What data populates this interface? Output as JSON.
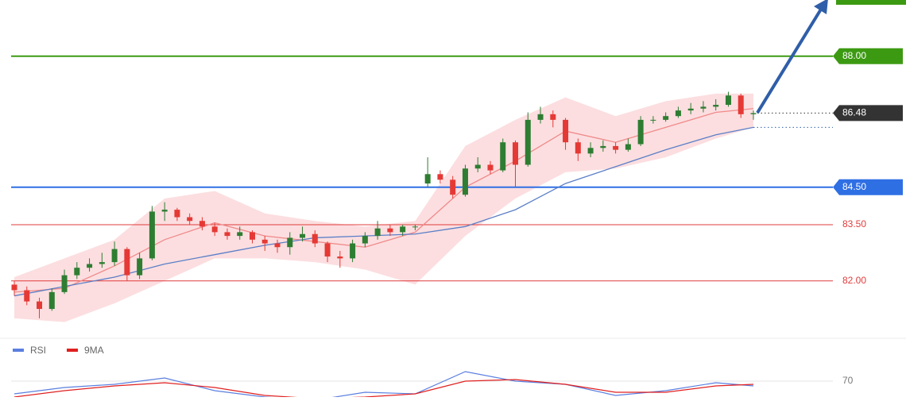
{
  "chart_data": {
    "type": "candlestick",
    "ylim": [
      80.7,
      89.5
    ],
    "up_color": "#2e7d32",
    "down_color": "#e53935",
    "ohlc": [
      [
        81.9,
        82.0,
        81.6,
        81.75
      ],
      [
        81.75,
        81.85,
        81.35,
        81.45
      ],
      [
        81.45,
        81.55,
        81.0,
        81.25
      ],
      [
        81.25,
        81.8,
        81.2,
        81.7
      ],
      [
        81.7,
        82.3,
        81.65,
        82.15
      ],
      [
        82.15,
        82.5,
        82.05,
        82.35
      ],
      [
        82.35,
        82.6,
        82.25,
        82.45
      ],
      [
        82.45,
        82.75,
        82.35,
        82.5
      ],
      [
        82.5,
        83.05,
        82.4,
        82.85
      ],
      [
        82.85,
        82.9,
        82.0,
        82.15
      ],
      [
        82.15,
        82.75,
        82.05,
        82.6
      ],
      [
        82.6,
        84.0,
        82.55,
        83.85
      ],
      [
        83.85,
        84.1,
        83.6,
        83.9
      ],
      [
        83.9,
        83.95,
        83.6,
        83.7
      ],
      [
        83.7,
        83.8,
        83.5,
        83.6
      ],
      [
        83.6,
        83.7,
        83.35,
        83.45
      ],
      [
        83.45,
        83.55,
        83.2,
        83.3
      ],
      [
        83.3,
        83.4,
        83.1,
        83.2
      ],
      [
        83.2,
        83.45,
        83.1,
        83.3
      ],
      [
        83.3,
        83.35,
        83.0,
        83.1
      ],
      [
        83.1,
        83.2,
        82.8,
        83.0
      ],
      [
        83.0,
        83.1,
        82.75,
        82.9
      ],
      [
        82.9,
        83.3,
        82.7,
        83.15
      ],
      [
        83.15,
        83.45,
        83.05,
        83.25
      ],
      [
        83.25,
        83.35,
        82.9,
        83.0
      ],
      [
        83.0,
        83.05,
        82.5,
        82.65
      ],
      [
        82.65,
        82.8,
        82.35,
        82.6
      ],
      [
        82.6,
        83.1,
        82.5,
        83.0
      ],
      [
        83.0,
        83.3,
        82.9,
        83.2
      ],
      [
        83.2,
        83.6,
        83.1,
        83.4
      ],
      [
        83.4,
        83.5,
        83.2,
        83.3
      ],
      [
        83.3,
        83.5,
        83.2,
        83.45
      ],
      [
        83.45,
        83.5,
        83.35,
        83.45
      ],
      [
        84.6,
        85.3,
        84.5,
        84.85
      ],
      [
        84.85,
        84.95,
        84.6,
        84.7
      ],
      [
        84.7,
        84.8,
        84.2,
        84.3
      ],
      [
        84.3,
        85.1,
        84.25,
        85.0
      ],
      [
        85.0,
        85.3,
        84.9,
        85.1
      ],
      [
        85.1,
        85.2,
        84.85,
        84.95
      ],
      [
        84.95,
        85.8,
        84.9,
        85.7
      ],
      [
        85.7,
        85.75,
        84.5,
        85.1
      ],
      [
        85.1,
        86.5,
        85.05,
        86.3
      ],
      [
        86.3,
        86.65,
        86.2,
        86.45
      ],
      [
        86.45,
        86.55,
        86.1,
        86.3
      ],
      [
        86.3,
        86.35,
        85.5,
        85.7
      ],
      [
        85.7,
        85.8,
        85.2,
        85.4
      ],
      [
        85.4,
        85.7,
        85.3,
        85.55
      ],
      [
        85.55,
        85.75,
        85.45,
        85.6
      ],
      [
        85.6,
        85.7,
        85.4,
        85.5
      ],
      [
        85.5,
        85.8,
        85.45,
        85.65
      ],
      [
        85.65,
        86.4,
        85.6,
        86.3
      ],
      [
        86.3,
        86.4,
        86.2,
        86.3
      ],
      [
        86.3,
        86.5,
        86.25,
        86.4
      ],
      [
        86.4,
        86.65,
        86.35,
        86.55
      ],
      [
        86.55,
        86.75,
        86.45,
        86.6
      ],
      [
        86.6,
        86.8,
        86.5,
        86.65
      ],
      [
        86.65,
        86.85,
        86.55,
        86.7
      ],
      [
        86.7,
        87.05,
        86.65,
        86.95
      ],
      [
        86.95,
        87.0,
        86.35,
        86.45
      ],
      [
        86.45,
        86.55,
        86.3,
        86.48
      ]
    ],
    "x": [
      0,
      4,
      8,
      12,
      16,
      20,
      24,
      28,
      32,
      36,
      40,
      44,
      48,
      52,
      56,
      59
    ],
    "band": {
      "color": "#fbd3d6",
      "upper": [
        82.1,
        82.6,
        83.1,
        84.2,
        84.4,
        83.8,
        83.6,
        83.45,
        83.6,
        85.6,
        86.3,
        86.9,
        86.4,
        86.8,
        87.0,
        87.0
      ],
      "lower": [
        81.0,
        80.9,
        81.4,
        82.0,
        82.6,
        82.6,
        82.5,
        82.3,
        81.9,
        83.2,
        84.2,
        84.9,
        85.0,
        85.3,
        85.8,
        86.1
      ]
    },
    "series": [
      {
        "color": "#f08a8a",
        "values": [
          81.7,
          81.8,
          82.4,
          83.1,
          83.55,
          83.2,
          83.05,
          82.9,
          83.3,
          84.5,
          85.2,
          86.0,
          85.7,
          86.1,
          86.5,
          86.6
        ]
      },
      {
        "color": "#5b7fc7",
        "values": [
          81.6,
          81.85,
          82.1,
          82.45,
          82.7,
          82.95,
          83.15,
          83.2,
          83.25,
          83.45,
          83.9,
          84.6,
          85.05,
          85.5,
          85.9,
          86.1
        ]
      }
    ],
    "levels": [
      {
        "value": 88,
        "label": "88.00",
        "color": "#3c9a12",
        "style": "box"
      },
      {
        "value": 86.48,
        "label": "86.48",
        "color": "#333333",
        "style": "current"
      },
      {
        "value": 84.5,
        "label": "84.50",
        "color": "#2f6fe4",
        "style": "box"
      },
      {
        "value": 83.5,
        "label": "83.50",
        "color": "#e03c3c",
        "style": "text"
      },
      {
        "value": 82,
        "label": "82.00",
        "color": "#e03c3c",
        "style": "text"
      }
    ],
    "rsi": {
      "ylim": [
        60,
        80
      ],
      "yticks": [
        70
      ],
      "series": [
        {
          "name": "RSI",
          "color": "#5b7fe0",
          "values": [
            62,
            66,
            68,
            72,
            64,
            60,
            58,
            63,
            62,
            76,
            70,
            68,
            61,
            64,
            69,
            67
          ]
        },
        {
          "name": "9MA",
          "color": "#e02020",
          "values": [
            60,
            64,
            67,
            69,
            66,
            61,
            59,
            60,
            62,
            70,
            71,
            68,
            63,
            63,
            67,
            68
          ]
        }
      ]
    }
  }
}
